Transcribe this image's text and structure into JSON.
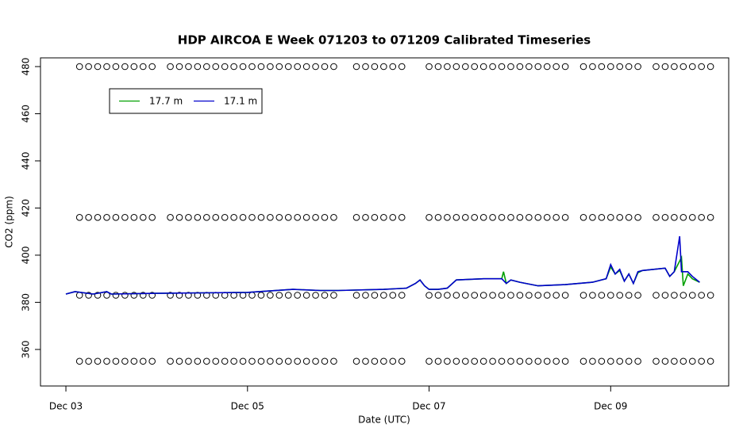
{
  "chart_data": {
    "type": "line",
    "title": "HDP AIRCOA E  Week 071203 to 071209  Calibrated Timeseries",
    "x_label": "Date (UTC)",
    "y_label": "CO2 (ppm)",
    "xlim": [
      -0.28,
      7.3
    ],
    "ylim": [
      344.5,
      483.7
    ],
    "xticks": [
      {
        "value": 0,
        "label": "Dec 03"
      },
      {
        "value": 2,
        "label": "Dec 05"
      },
      {
        "value": 4,
        "label": "Dec 07"
      },
      {
        "value": 6,
        "label": "Dec 09"
      }
    ],
    "yticks": [
      360,
      380,
      400,
      420,
      440,
      460,
      480
    ],
    "legend": "topleft",
    "series": [
      {
        "name": "17.7 m",
        "color": "#00a000",
        "x": [
          0,
          0.1,
          0.3,
          0.45,
          0.5,
          1.0,
          1.5,
          2.0,
          2.5,
          2.8,
          3.0,
          3.5,
          3.75,
          3.85,
          3.9,
          3.95,
          4.0,
          4.1,
          4.2,
          4.3,
          4.6,
          4.8,
          4.82,
          4.85,
          4.9,
          5.0,
          5.2,
          5.5,
          5.8,
          5.95,
          6.0,
          6.05,
          6.1,
          6.15,
          6.2,
          6.25,
          6.3,
          6.35,
          6.6,
          6.65,
          6.7,
          6.78,
          6.8,
          6.85,
          6.9,
          6.98
        ],
        "values": [
          383.5,
          384.5,
          383.5,
          384.5,
          383.5,
          383.8,
          384,
          384.2,
          385.5,
          385,
          385,
          385.5,
          386,
          388,
          389.5,
          387,
          385.5,
          385.5,
          386,
          389.5,
          390,
          390,
          393,
          388,
          389.5,
          388.5,
          387,
          387.5,
          388.5,
          390,
          395,
          392,
          393.5,
          389,
          392,
          388,
          392.5,
          393.5,
          394.5,
          391,
          393,
          399,
          387,
          392,
          390,
          388.5
        ]
      },
      {
        "name": "17.1 m",
        "color": "#0000cc",
        "x": [
          0,
          0.1,
          0.3,
          0.45,
          0.5,
          1.0,
          1.5,
          2.0,
          2.5,
          2.8,
          3.0,
          3.5,
          3.75,
          3.85,
          3.9,
          3.95,
          4.0,
          4.1,
          4.2,
          4.3,
          4.6,
          4.8,
          4.85,
          4.9,
          5.0,
          5.2,
          5.5,
          5.8,
          5.95,
          6.0,
          6.05,
          6.1,
          6.15,
          6.2,
          6.25,
          6.3,
          6.35,
          6.6,
          6.65,
          6.7,
          6.76,
          6.78,
          6.85,
          6.9,
          6.98
        ],
        "values": [
          383.5,
          384.5,
          383.5,
          384.5,
          383.5,
          383.8,
          384,
          384.2,
          385.5,
          385,
          385,
          385.5,
          386,
          388,
          389.5,
          387,
          385.5,
          385.5,
          386,
          389.5,
          390,
          390,
          388,
          389.5,
          388.5,
          387,
          387.5,
          388.5,
          390,
          396,
          392,
          394,
          389,
          392,
          388,
          393,
          393.5,
          394.5,
          391,
          393,
          408,
          393,
          393,
          391,
          388.5
        ]
      }
    ],
    "calibration": {
      "levels": [
        480,
        416,
        383,
        355
      ],
      "x": [
        0.15,
        0.25,
        0.35,
        0.45,
        0.55,
        0.65,
        0.75,
        0.85,
        0.95,
        1.15,
        1.25,
        1.35,
        1.45,
        1.55,
        1.65,
        1.75,
        1.85,
        1.95,
        2.05,
        2.15,
        2.25,
        2.35,
        2.45,
        2.55,
        2.65,
        2.75,
        2.85,
        2.95,
        3.2,
        3.3,
        3.4,
        3.5,
        3.6,
        3.7,
        4.0,
        4.1,
        4.2,
        4.3,
        4.4,
        4.5,
        4.6,
        4.7,
        4.8,
        4.9,
        5.0,
        5.1,
        5.2,
        5.3,
        5.4,
        5.5,
        5.7,
        5.8,
        5.9,
        6.0,
        6.1,
        6.2,
        6.3,
        6.5,
        6.6,
        6.7,
        6.8,
        6.9,
        7.0,
        7.1
      ]
    }
  }
}
